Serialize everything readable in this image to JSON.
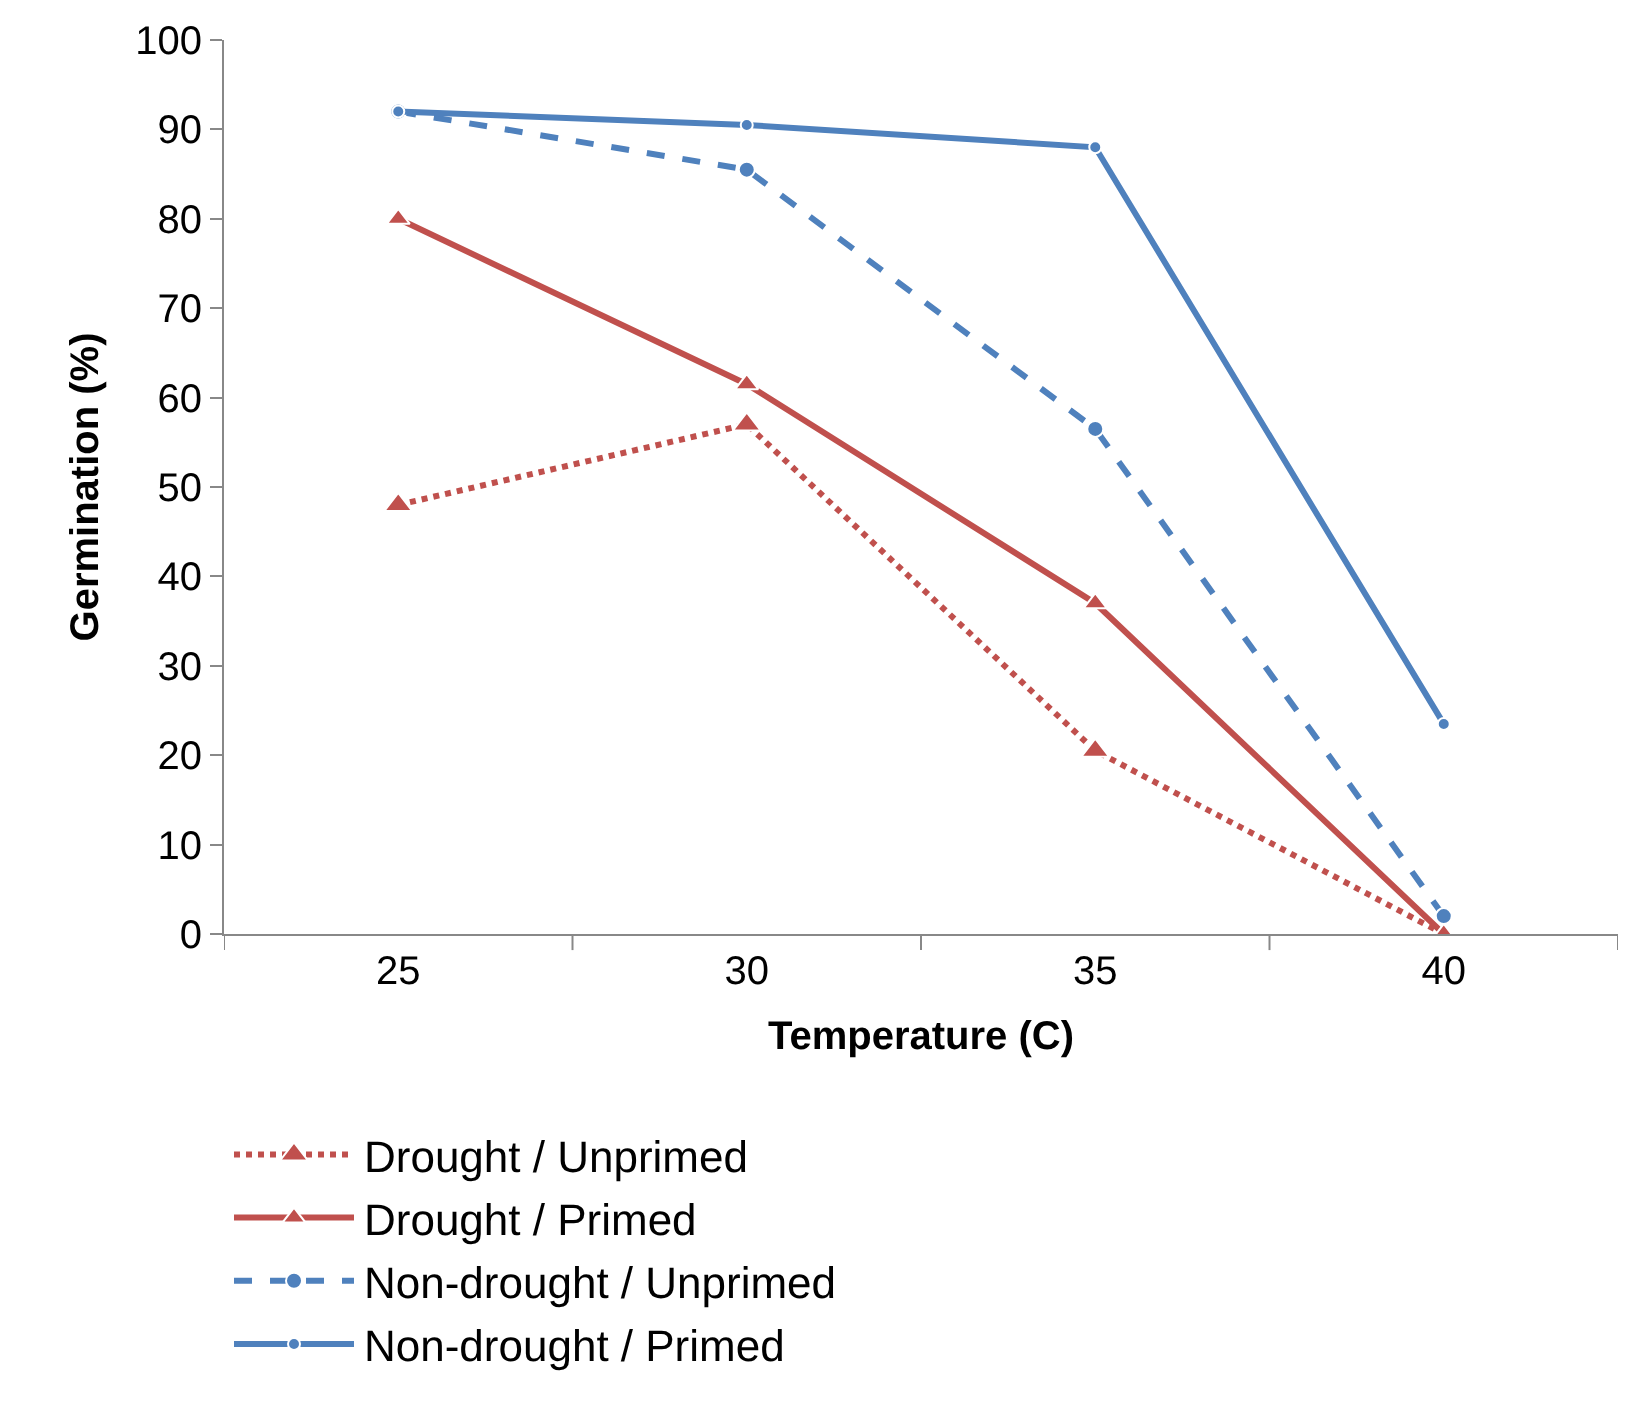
{
  "chart_data": {
    "type": "line",
    "xlabel": "Temperature (C)",
    "ylabel": "Germination (%)",
    "categories": [
      "25",
      "30",
      "35",
      "40"
    ],
    "series": [
      {
        "name": "Drought / Unprimed",
        "color": "#c0504d",
        "values": [
          48,
          57,
          20.5,
          0
        ],
        "marker": "triangle",
        "line_style": "dotted"
      },
      {
        "name": "Drought / Primed",
        "color": "#c0504d",
        "values": [
          80,
          61.5,
          37,
          0
        ],
        "marker": "triangle",
        "line_style": "solid"
      },
      {
        "name": "Non-drought / Unprimed",
        "color": "#4f81bd",
        "values": [
          92,
          85.5,
          56.5,
          2
        ],
        "marker": "circle",
        "line_style": "dashed"
      },
      {
        "name": "Non-drought / Primed",
        "color": "#4f81bd",
        "values": [
          92,
          90.5,
          88,
          23.5
        ],
        "marker": "circle",
        "line_style": "solid"
      }
    ],
    "ylim": [
      0,
      100
    ],
    "yticks": [
      0,
      10,
      20,
      30,
      40,
      50,
      60,
      70,
      80,
      90,
      100
    ],
    "grid": false,
    "legend": "bottom"
  }
}
